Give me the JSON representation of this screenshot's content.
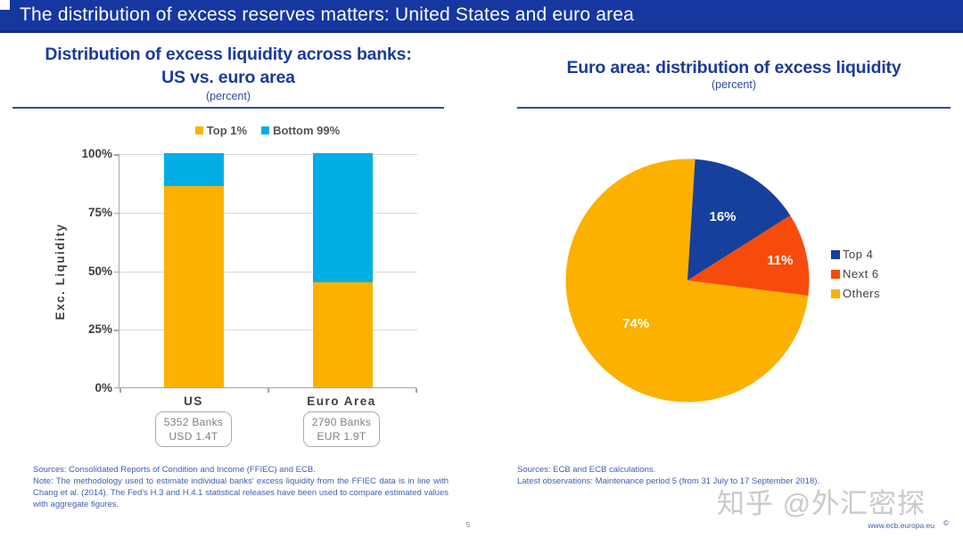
{
  "header": {
    "title": "The distribution of excess reserves matters: United States and euro area"
  },
  "left_panel": {
    "title_line1": "Distribution of excess liquidity across banks:",
    "title_line2": "US vs. euro area",
    "subtitle": "(percent)",
    "sources": "Sources: Consolidated Reports of Condition and Income (FFIEC) and ECB.",
    "note": "Note: The methodology used to estimate individual banks' excess liquidity from the FFIEC data is in line with Chang et al. (2014). The Fed's H.3 and H.4.1 statistical releases have been used to compare estimated values with aggregate figures."
  },
  "right_panel": {
    "title": "Euro area: distribution of excess liquidity",
    "subtitle": "(percent)",
    "sources": "Sources: ECB and ECB calculations.",
    "latest": "Latest observations: Maintenance period 5 (from 31 July to 17 September 2018)."
  },
  "chart_data": [
    {
      "type": "bar",
      "stacked": true,
      "title": "Distribution of excess liquidity across banks: US vs. euro area",
      "subtitle": "(percent)",
      "categories": [
        "US",
        "Euro Area"
      ],
      "series": [
        {
          "name": "Top 1%",
          "values": [
            86,
            45
          ],
          "color": "#FCB100"
        },
        {
          "name": "Bottom 99%",
          "values": [
            14,
            55
          ],
          "color": "#00AEE5"
        }
      ],
      "ylabel": "Exc. Liquidity",
      "ylim": [
        0,
        100
      ],
      "yticks": [
        "0%",
        "25%",
        "50%",
        "75%",
        "100%"
      ],
      "grid": true,
      "legend_position": "top",
      "category_notes": [
        [
          "5352 Banks",
          "USD 1.4T"
        ],
        [
          "2790 Banks",
          "EUR 1.9T"
        ]
      ]
    },
    {
      "type": "pie",
      "title": "Euro area: distribution of excess liquidity",
      "subtitle": "(percent)",
      "labels": [
        "Top 4",
        "Next 6",
        "Others"
      ],
      "values": [
        16,
        11,
        74
      ],
      "colors": [
        "#16409E",
        "#F74B0B",
        "#FCB100"
      ],
      "start_angle_deg": 0,
      "direction": "clockwise",
      "legend_position": "right",
      "data_labels": [
        "16%",
        "11%",
        "74%"
      ]
    }
  ],
  "colors": {
    "header_bg": "#1637A0",
    "header_border": "#102C87",
    "title_blue": "#1B3B99",
    "source_blue": "#3D5EB0",
    "axis_gray": "#3F3F3F"
  },
  "footer": {
    "page_number": "5",
    "url": "www.ecb.europa.eu",
    "mark": "©"
  },
  "watermark": "知乎 @外汇密探"
}
